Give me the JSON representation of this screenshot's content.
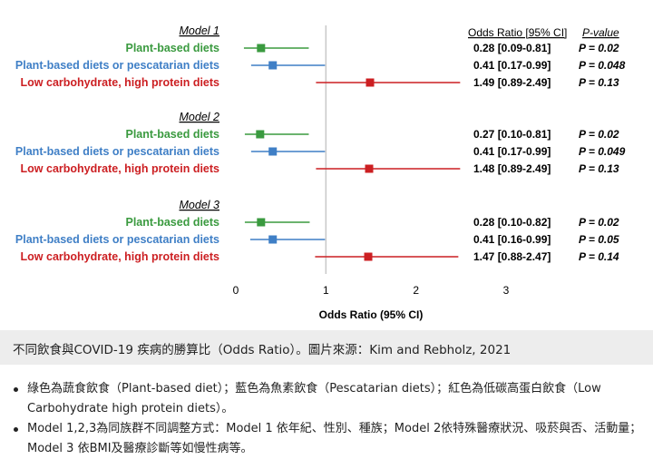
{
  "chart_data": {
    "type": "forest",
    "header": {
      "odds_ratio": "Odds Ratio [95% CI]",
      "p_value": "P-value"
    },
    "xlabel": "Odds Ratio (95% CI)",
    "xlim": [
      0,
      3
    ],
    "xticks": [
      "0",
      "1",
      "2",
      "3"
    ],
    "reference_line": 1,
    "colors": {
      "plant": "#3a9a3f",
      "pesc": "#3f7fc6",
      "lowcarb": "#cc1f22"
    },
    "models": [
      {
        "title": "Model 1",
        "rows": [
          {
            "label": "Plant-based diets",
            "color": "plant",
            "or": 0.28,
            "low": 0.09,
            "high": 0.81,
            "or_text": "0.28 [0.09-0.81]",
            "p_text": "P = 0.02"
          },
          {
            "label": "Plant-based diets or pescatarian diets",
            "color": "pesc",
            "or": 0.41,
            "low": 0.17,
            "high": 0.99,
            "or_text": "0.41 [0.17-0.99]",
            "p_text": "P = 0.048"
          },
          {
            "label": "Low carbohydrate, high protein diets",
            "color": "lowcarb",
            "or": 1.49,
            "low": 0.89,
            "high": 2.49,
            "or_text": "1.49 [0.89-2.49]",
            "p_text": "P = 0.13"
          }
        ]
      },
      {
        "title": "Model 2",
        "rows": [
          {
            "label": "Plant-based diets",
            "color": "plant",
            "or": 0.27,
            "low": 0.1,
            "high": 0.81,
            "or_text": "0.27 [0.10-0.81]",
            "p_text": "P = 0.02"
          },
          {
            "label": "Plant-based diets or pescatarian diets",
            "color": "pesc",
            "or": 0.41,
            "low": 0.17,
            "high": 0.99,
            "or_text": "0.41 [0.17-0.99]",
            "p_text": "P = 0.049"
          },
          {
            "label": "Low carbohydrate, high protein diets",
            "color": "lowcarb",
            "or": 1.48,
            "low": 0.89,
            "high": 2.49,
            "or_text": "1.48 [0.89-2.49]",
            "p_text": "P = 0.13"
          }
        ]
      },
      {
        "title": "Model 3",
        "rows": [
          {
            "label": "Plant-based diets",
            "color": "plant",
            "or": 0.28,
            "low": 0.1,
            "high": 0.82,
            "or_text": "0.28 [0.10-0.82]",
            "p_text": "P = 0.02"
          },
          {
            "label": "Plant-based diets or pescatarian diets",
            "color": "pesc",
            "or": 0.41,
            "low": 0.16,
            "high": 0.99,
            "or_text": "0.41 [0.16-0.99]",
            "p_text": "P = 0.05"
          },
          {
            "label": "Low carbohydrate, high protein diets",
            "color": "lowcarb",
            "or": 1.47,
            "low": 0.88,
            "high": 2.47,
            "or_text": "1.47 [0.88-2.47]",
            "p_text": "P = 0.14"
          }
        ]
      }
    ]
  },
  "caption": "不同飲食與COVID-19 疾病的勝算比（Odds Ratio）。圖片來源：Kim and Rebholz, 2021",
  "notes": [
    "綠色為蔬食飲食（Plant-based diet）；藍色為魚素飲食（Pescatarian diets）；紅色為低碳高蛋白飲食（Low Carbohydrate high protein diets）。",
    "Model 1,2,3為同族群不同調整方式：Model 1 依年紀、性別、種族；Model 2依特殊醫療狀況、吸菸與否、活動量；Model 3 依BMI及醫療診斷等如慢性病等。"
  ]
}
